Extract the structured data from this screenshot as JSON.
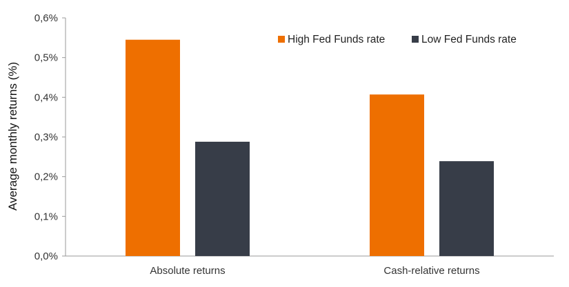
{
  "chart_data": {
    "type": "bar",
    "categories": [
      "Absolute returns",
      "Cash-relative returns"
    ],
    "series": [
      {
        "name": "High Fed Funds rate",
        "values": [
          0.545,
          0.407
        ],
        "color": "#ee6f00"
      },
      {
        "name": "Low Fed Funds rate",
        "values": [
          0.288,
          0.239
        ],
        "color": "#373d48"
      }
    ],
    "ylabel": "Average monthly returns (%)",
    "xlabel": "",
    "ylim": [
      0,
      0.6
    ],
    "yticks": [
      0,
      0.1,
      0.2,
      0.3,
      0.4,
      0.5,
      0.6
    ],
    "ytick_labels": [
      "0,0%",
      "0,1%",
      "0,2%",
      "0,3%",
      "0,4%",
      "0,5%",
      "0,6%"
    ],
    "grid": false,
    "legend_position": "top-right"
  }
}
